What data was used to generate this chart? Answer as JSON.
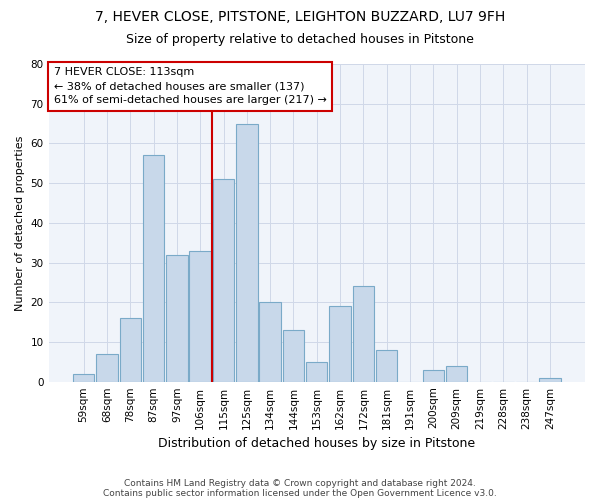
{
  "title1": "7, HEVER CLOSE, PITSTONE, LEIGHTON BUZZARD, LU7 9FH",
  "title2": "Size of property relative to detached houses in Pitstone",
  "xlabel": "Distribution of detached houses by size in Pitstone",
  "ylabel": "Number of detached properties",
  "bar_labels": [
    "59sqm",
    "68sqm",
    "78sqm",
    "87sqm",
    "97sqm",
    "106sqm",
    "115sqm",
    "125sqm",
    "134sqm",
    "144sqm",
    "153sqm",
    "162sqm",
    "172sqm",
    "181sqm",
    "191sqm",
    "200sqm",
    "209sqm",
    "219sqm",
    "228sqm",
    "238sqm",
    "247sqm"
  ],
  "bar_values": [
    2,
    7,
    16,
    57,
    32,
    33,
    51,
    65,
    20,
    13,
    5,
    19,
    24,
    8,
    0,
    3,
    4,
    0,
    0,
    0,
    1
  ],
  "bar_color": "#c8d8ea",
  "bar_edge_color": "#7aaac8",
  "grid_color": "#d0d8e8",
  "bg_color": "#ffffff",
  "plot_bg_color": "#f0f4fa",
  "vline_color": "#cc0000",
  "annotation_line1": "7 HEVER CLOSE: 113sqm",
  "annotation_line2": "← 38% of detached houses are smaller (137)",
  "annotation_line3": "61% of semi-detached houses are larger (217) →",
  "annotation_box_color": "#ffffff",
  "annotation_box_edge": "#cc0000",
  "footer1": "Contains HM Land Registry data © Crown copyright and database right 2024.",
  "footer2": "Contains public sector information licensed under the Open Government Licence v3.0.",
  "ylim": [
    0,
    80
  ],
  "yticks": [
    0,
    10,
    20,
    30,
    40,
    50,
    60,
    70,
    80
  ],
  "title1_fontsize": 10,
  "title2_fontsize": 9,
  "xlabel_fontsize": 9,
  "ylabel_fontsize": 8,
  "tick_fontsize": 7.5,
  "annotation_fontsize": 8,
  "footer_fontsize": 6.5
}
